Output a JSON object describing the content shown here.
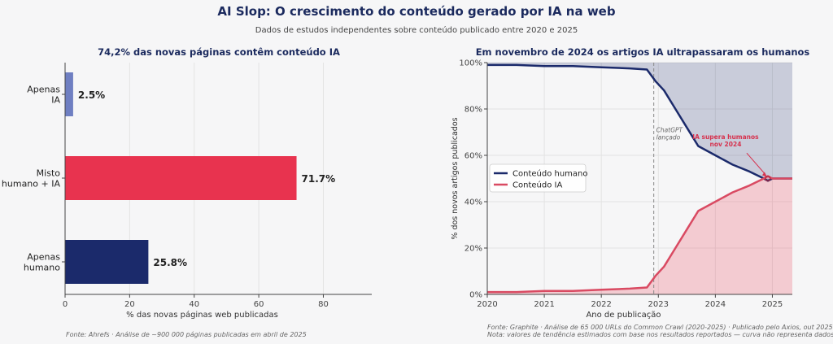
{
  "header": {
    "title": "AI Slop: O crescimento do conteúdo gerado por IA na web",
    "subtitle": "Dados de estudos independentes sobre conteúdo publicado entre 2020 e 2025"
  },
  "left": {
    "title": "74,2% das novas páginas contêm conteúdo IA",
    "footnote": "Fonte: Ahrefs · Análise de ~900 000 páginas publicadas em abril de 2025"
  },
  "right": {
    "title": "Em novembro de 2024 os artigos IA ultrapassaram os humanos",
    "footnote_line1": "Fonte: Graphite · Análise de 65 000 URLs do Common Crawl (2020-2025) · Publicado pelo Axios, out 2025",
    "footnote_line2": "Nota: valores de tendência estimados com base nos resultados reportados — curva não representa dados brutos."
  },
  "chart_data": [
    {
      "type": "bar",
      "orientation": "horizontal",
      "title": "74,2% das novas páginas contêm conteúdo IA",
      "categories": [
        [
          "Apenas",
          "IA"
        ],
        [
          "Misto",
          "humano + IA"
        ],
        [
          "Apenas",
          "humano"
        ]
      ],
      "values": [
        2.5,
        71.7,
        25.8
      ],
      "value_labels": [
        "2.5%",
        "71.7%",
        "25.8%"
      ],
      "colors": [
        "#6f7fc2",
        "#e8334f",
        "#1b2a6b"
      ],
      "xlabel": "% das novas páginas web publicadas",
      "xlim": [
        0,
        95
      ],
      "xticks": [
        0,
        20,
        40,
        60,
        80
      ],
      "grid": "x"
    },
    {
      "type": "line",
      "title": "Em novembro de 2024 os artigos IA ultrapassaram os humanos",
      "xlabel": "Ano de publicação",
      "ylabel": "% dos novos artigos publicados",
      "xlim": [
        2020,
        2025.35
      ],
      "ylim": [
        0,
        100
      ],
      "xticks": [
        2020,
        2021,
        2022,
        2023,
        2024,
        2025
      ],
      "yticks": [
        0,
        20,
        40,
        60,
        80,
        100
      ],
      "ytick_labels": [
        "0%",
        "20%",
        "40%",
        "60%",
        "80%",
        "100%"
      ],
      "legend": "center-left",
      "series": [
        {
          "name": "Conteúdo humano",
          "color": "#1b2a6b",
          "x": [
            2020,
            2020.5,
            2021,
            2021.5,
            2022,
            2022.5,
            2022.8,
            2022.95,
            2023.1,
            2023.3,
            2023.5,
            2023.7,
            2024,
            2024.3,
            2024.6,
            2024.85,
            2024.92,
            2025,
            2025.35
          ],
          "y": [
            99,
            99,
            98.5,
            98.5,
            98,
            97.5,
            97,
            92,
            88,
            80,
            72,
            64,
            60,
            56,
            53,
            50,
            49,
            50,
            50
          ]
        },
        {
          "name": "Conteúdo IA",
          "color": "#d94a62",
          "x": [
            2020,
            2020.5,
            2021,
            2021.5,
            2022,
            2022.5,
            2022.8,
            2022.95,
            2023.1,
            2023.3,
            2023.5,
            2023.7,
            2024,
            2024.3,
            2024.6,
            2024.85,
            2024.92,
            2025,
            2025.35
          ],
          "y": [
            1,
            1,
            1.5,
            1.5,
            2,
            2.5,
            3,
            8,
            12,
            20,
            28,
            36,
            40,
            44,
            47,
            50,
            51,
            50,
            50
          ]
        }
      ],
      "vline": {
        "x": 2022.92,
        "label": [
          "ChatGPT",
          "lançado"
        ]
      },
      "annotation": {
        "text": [
          "IA supera humanos",
          "nov 2024"
        ],
        "x": 2024.92,
        "y": 50,
        "color": "#d6334f"
      }
    }
  ]
}
